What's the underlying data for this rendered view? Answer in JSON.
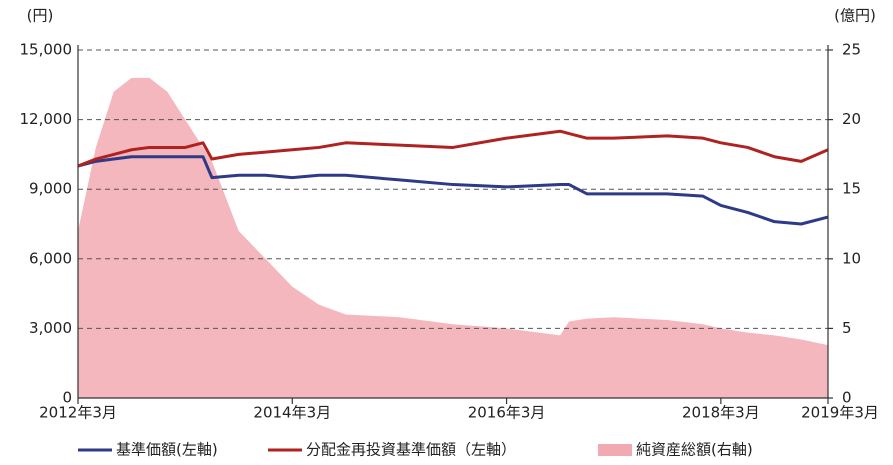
{
  "chart_data": {
    "type": "line",
    "y_unit": "(円)",
    "y2_unit": "(億円)",
    "x": [
      "2012-03",
      "2012-05",
      "2012-07",
      "2012-09",
      "2012-11",
      "2013-01",
      "2013-03",
      "2013-05",
      "2013-06",
      "2013-09",
      "2013-12",
      "2014-03",
      "2014-06",
      "2014-09",
      "2015-03",
      "2015-09",
      "2016-03",
      "2016-09",
      "2016-10",
      "2016-12",
      "2017-03",
      "2017-09",
      "2018-01",
      "2018-03",
      "2018-06",
      "2018-09",
      "2018-12",
      "2019-03"
    ],
    "xlim": [
      "2012-03",
      "2019-03"
    ],
    "xticks": [
      {
        "value": "2012-03",
        "label": "2012年3月"
      },
      {
        "value": "2014-03",
        "label": "2014年3月"
      },
      {
        "value": "2016-03",
        "label": "2016年3月"
      },
      {
        "value": "2018-03",
        "label": "2018年3月"
      },
      {
        "value": "2019-03",
        "label": "2019年3月"
      }
    ],
    "ylim": [
      0,
      15000
    ],
    "yticks": [
      0,
      {
        "value": 3000,
        "label": "3,000"
      },
      {
        "value": 6000,
        "label": "6,000"
      },
      {
        "value": 9000,
        "label": "9,000"
      },
      {
        "value": 12000,
        "label": "12,000"
      },
      {
        "value": 15000,
        "label": "15,000"
      }
    ],
    "y2lim": [
      0,
      25
    ],
    "y2ticks": [
      0,
      5,
      10,
      15,
      20,
      25
    ],
    "grid": true,
    "legend": "bottom",
    "series": [
      {
        "name": "純資産総額(右軸)",
        "color": "#f2aab2",
        "kind": "area",
        "axis": "y2",
        "values": [
          12,
          18,
          22,
          23,
          23,
          22,
          20,
          18,
          17,
          12,
          10,
          8,
          6.7,
          6,
          5.8,
          5.3,
          5,
          4.5,
          5.5,
          5.7,
          5.8,
          5.6,
          5.3,
          5,
          4.7,
          4.5,
          4.2,
          3.8
        ]
      },
      {
        "name": "基準価額(左軸)",
        "color": "#2e3a87",
        "values": [
          10000,
          10200,
          10300,
          10400,
          10400,
          10400,
          10400,
          10400,
          9500,
          9600,
          9600,
          9500,
          9600,
          9600,
          9400,
          9200,
          9100,
          9200,
          9200,
          8800,
          8800,
          8800,
          8700,
          8300,
          8000,
          7600,
          7500,
          7800
        ]
      },
      {
        "name": "分配金再投資基準価額（左軸）",
        "color": "#b0221f",
        "values": [
          10000,
          10300,
          10500,
          10700,
          10800,
          10800,
          10800,
          11000,
          10300,
          10500,
          10600,
          10700,
          10800,
          11000,
          10900,
          10800,
          11200,
          11500,
          11400,
          11200,
          11200,
          11300,
          11200,
          11000,
          10800,
          10400,
          10200,
          10700
        ]
      }
    ]
  }
}
